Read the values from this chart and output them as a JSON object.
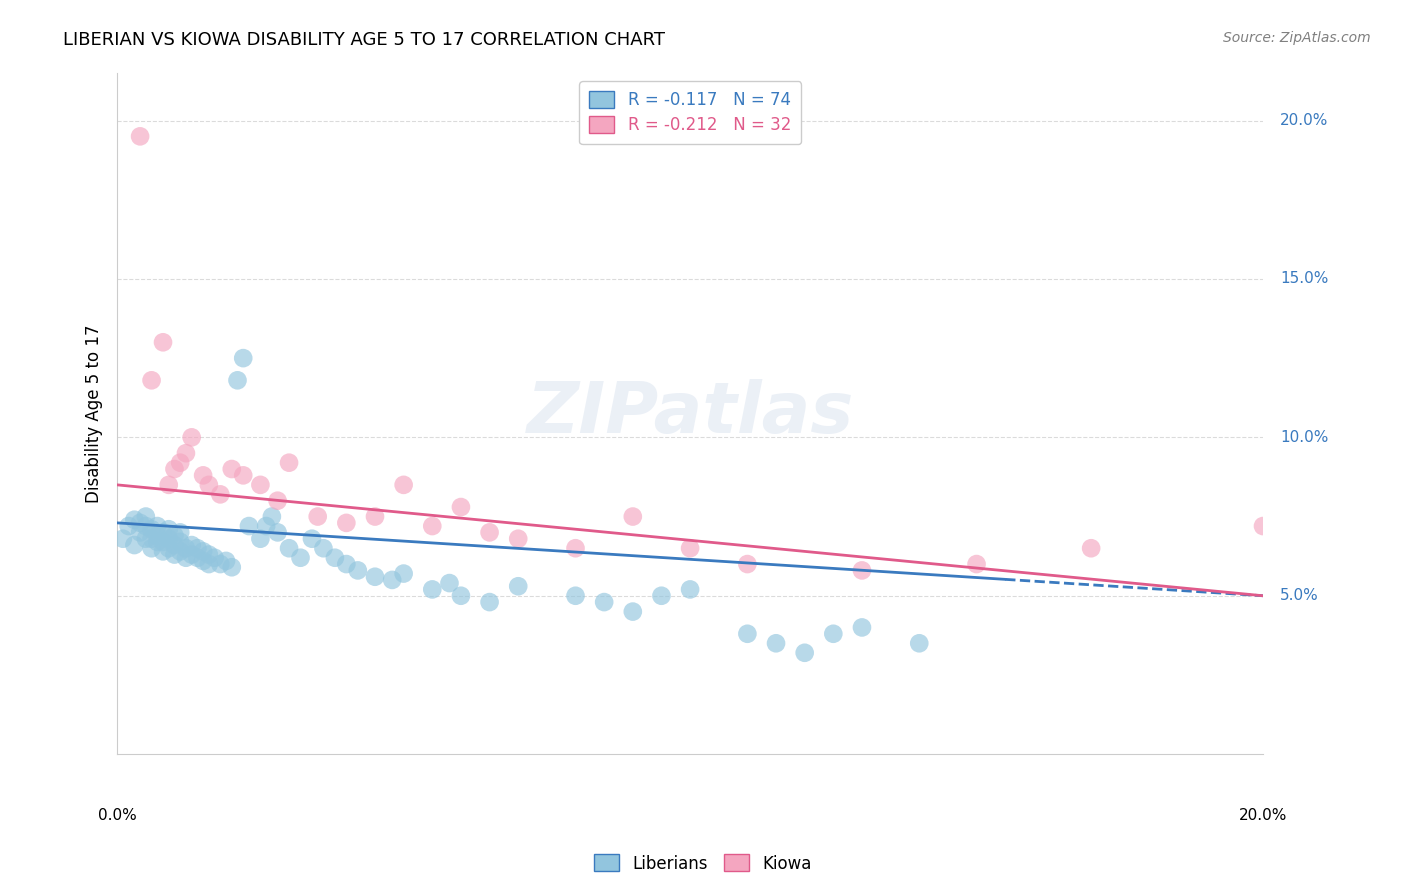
{
  "title": "LIBERIAN VS KIOWA DISABILITY AGE 5 TO 17 CORRELATION CHART",
  "source": "Source: ZipAtlas.com",
  "ylabel": "Disability Age 5 to 17",
  "legend_label1": "Liberians",
  "legend_label2": "Kiowa",
  "R1": -0.117,
  "N1": 74,
  "R2": -0.212,
  "N2": 32,
  "xmin": 0.0,
  "xmax": 0.2,
  "ymin": 0.0,
  "ymax": 0.215,
  "yticks": [
    0.05,
    0.1,
    0.15,
    0.2
  ],
  "ytick_labels": [
    "5.0%",
    "10.0%",
    "15.0%",
    "20.0%"
  ],
  "color_blue": "#92c5de",
  "color_pink": "#f4a6c0",
  "line_blue": "#3a7abf",
  "line_pink": "#e05a8a",
  "liberians_x": [
    0.001,
    0.002,
    0.003,
    0.003,
    0.004,
    0.004,
    0.005,
    0.005,
    0.005,
    0.006,
    0.006,
    0.006,
    0.007,
    0.007,
    0.007,
    0.008,
    0.008,
    0.008,
    0.009,
    0.009,
    0.009,
    0.01,
    0.01,
    0.01,
    0.011,
    0.011,
    0.011,
    0.012,
    0.012,
    0.013,
    0.013,
    0.014,
    0.014,
    0.015,
    0.015,
    0.016,
    0.016,
    0.017,
    0.018,
    0.019,
    0.02,
    0.021,
    0.022,
    0.023,
    0.025,
    0.026,
    0.027,
    0.028,
    0.03,
    0.032,
    0.034,
    0.036,
    0.038,
    0.04,
    0.042,
    0.045,
    0.048,
    0.05,
    0.055,
    0.058,
    0.06,
    0.065,
    0.07,
    0.08,
    0.085,
    0.09,
    0.095,
    0.1,
    0.11,
    0.115,
    0.12,
    0.125,
    0.13,
    0.14
  ],
  "liberians_y": [
    0.068,
    0.072,
    0.074,
    0.066,
    0.07,
    0.073,
    0.068,
    0.072,
    0.075,
    0.065,
    0.068,
    0.071,
    0.067,
    0.069,
    0.072,
    0.064,
    0.067,
    0.07,
    0.065,
    0.068,
    0.071,
    0.063,
    0.066,
    0.069,
    0.064,
    0.067,
    0.07,
    0.062,
    0.065,
    0.063,
    0.066,
    0.062,
    0.065,
    0.061,
    0.064,
    0.06,
    0.063,
    0.062,
    0.06,
    0.061,
    0.059,
    0.118,
    0.125,
    0.072,
    0.068,
    0.072,
    0.075,
    0.07,
    0.065,
    0.062,
    0.068,
    0.065,
    0.062,
    0.06,
    0.058,
    0.056,
    0.055,
    0.057,
    0.052,
    0.054,
    0.05,
    0.048,
    0.053,
    0.05,
    0.048,
    0.045,
    0.05,
    0.052,
    0.038,
    0.035,
    0.032,
    0.038,
    0.04,
    0.035
  ],
  "kiowa_x": [
    0.004,
    0.006,
    0.008,
    0.009,
    0.01,
    0.011,
    0.012,
    0.013,
    0.015,
    0.016,
    0.018,
    0.02,
    0.022,
    0.025,
    0.028,
    0.03,
    0.035,
    0.04,
    0.045,
    0.05,
    0.055,
    0.06,
    0.065,
    0.07,
    0.08,
    0.09,
    0.1,
    0.11,
    0.13,
    0.15,
    0.17,
    0.2
  ],
  "kiowa_y": [
    0.195,
    0.118,
    0.13,
    0.085,
    0.09,
    0.092,
    0.095,
    0.1,
    0.088,
    0.085,
    0.082,
    0.09,
    0.088,
    0.085,
    0.08,
    0.092,
    0.075,
    0.073,
    0.075,
    0.085,
    0.072,
    0.078,
    0.07,
    0.068,
    0.065,
    0.075,
    0.065,
    0.06,
    0.058,
    0.06,
    0.065,
    0.072
  ],
  "blue_line_start_x": 0.0,
  "blue_line_start_y": 0.073,
  "blue_line_solid_end_x": 0.155,
  "blue_line_end_x": 0.2,
  "blue_line_end_y": 0.05,
  "pink_line_start_x": 0.0,
  "pink_line_start_y": 0.085,
  "pink_line_end_x": 0.2,
  "pink_line_end_y": 0.05,
  "background_color": "#ffffff",
  "grid_color": "#cccccc"
}
